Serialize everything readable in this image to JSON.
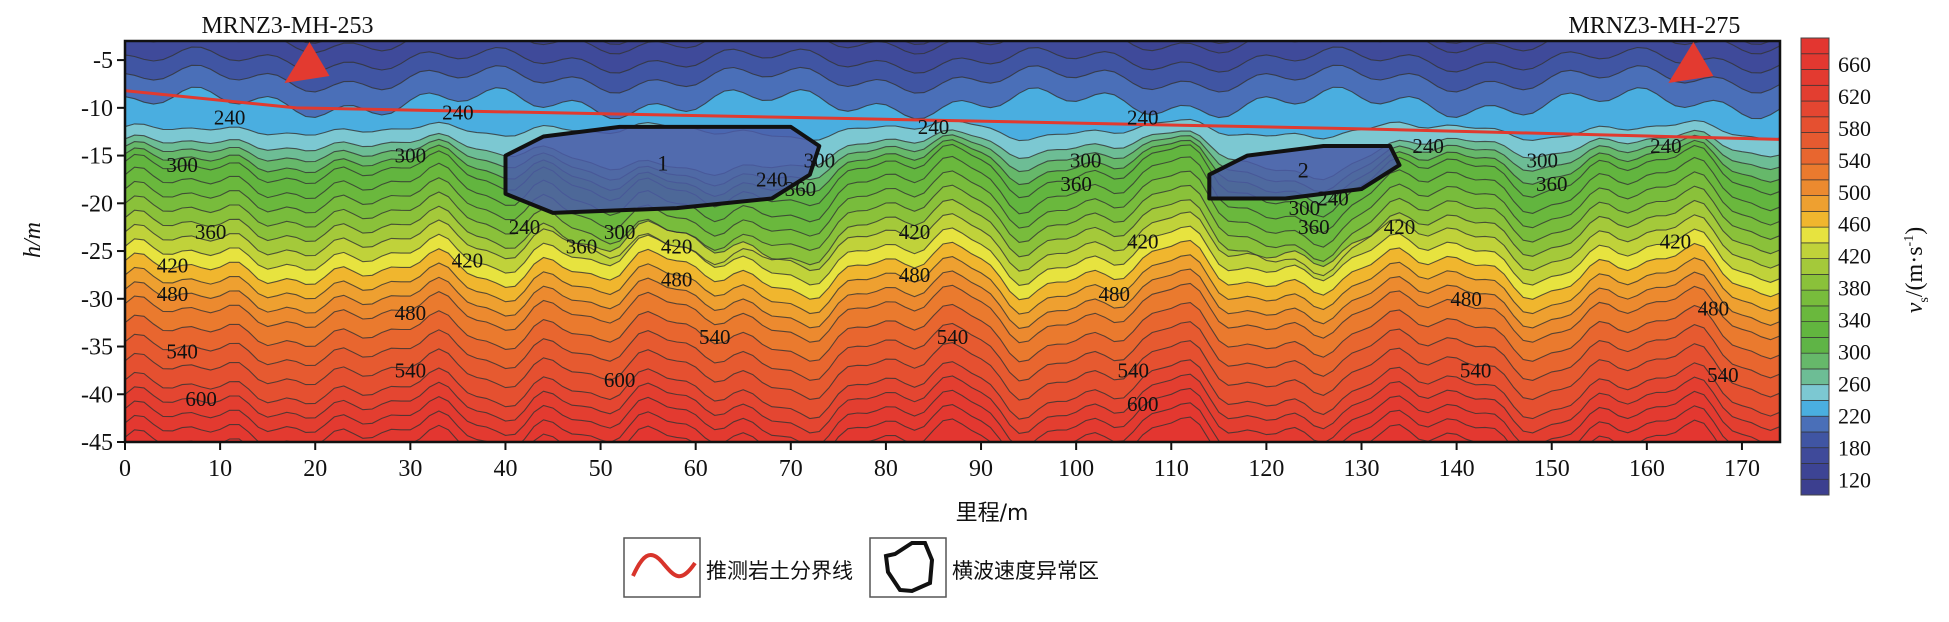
{
  "chart_data": {
    "type": "heatmap",
    "subtype": "filled-contour",
    "xlabel": "里程/m",
    "ylabel": "h/m",
    "xlim": [
      0,
      174
    ],
    "ylim": [
      -45,
      -3
    ],
    "xticks": [
      0,
      10,
      20,
      30,
      40,
      50,
      60,
      70,
      80,
      90,
      100,
      110,
      120,
      130,
      140,
      150,
      160,
      170
    ],
    "yticks": [
      -5,
      -10,
      -15,
      -20,
      -25,
      -30,
      -35,
      -40,
      -45
    ],
    "colorbar": {
      "label_main": "v",
      "label_sub": "s",
      "label_unit": "/(m·s",
      "label_exp": "-1",
      "label_close": ")",
      "tick_labels": [
        "660",
        "620",
        "580",
        "540",
        "500",
        "460",
        "420",
        "380",
        "340",
        "300",
        "260",
        "220",
        "180",
        "120"
      ],
      "levels": [
        120,
        140,
        160,
        180,
        200,
        220,
        240,
        260,
        280,
        300,
        320,
        340,
        360,
        380,
        400,
        420,
        440,
        460,
        480,
        500,
        520,
        540,
        560,
        580,
        600,
        620,
        640,
        660,
        680,
        700
      ],
      "colors": [
        "#3c3f8f",
        "#3d4494",
        "#3f4a9a",
        "#4055a3",
        "#4a6fb8",
        "#4aaee0",
        "#7cc8d2",
        "#6dbd95",
        "#66b86a",
        "#5fb446",
        "#62b53f",
        "#6ab83d",
        "#78bc3c",
        "#8ac13a",
        "#a4c93a",
        "#c0d23a",
        "#e7e33f",
        "#f0b62e",
        "#eea030",
        "#ec8a2f",
        "#ea7a2e",
        "#e8662f",
        "#e65a30",
        "#e55030",
        "#e44631",
        "#e33e30",
        "#e33a30",
        "#e33830",
        "#e33630"
      ]
    },
    "contour_labels": [
      {
        "text": "240",
        "x": 11,
        "y": -11
      },
      {
        "text": "240",
        "x": 35,
        "y": -10.5
      },
      {
        "text": "240",
        "x": 68,
        "y": -17.5
      },
      {
        "text": "240",
        "x": 85,
        "y": -12
      },
      {
        "text": "240",
        "x": 107,
        "y": -11
      },
      {
        "text": "240",
        "x": 127,
        "y": -19.5
      },
      {
        "text": "240",
        "x": 137,
        "y": -14
      },
      {
        "text": "240",
        "x": 162,
        "y": -14
      },
      {
        "text": "240",
        "x": 42,
        "y": -22.5
      },
      {
        "text": "300",
        "x": 6,
        "y": -16
      },
      {
        "text": "300",
        "x": 30,
        "y": -15
      },
      {
        "text": "300",
        "x": 73,
        "y": -15.5
      },
      {
        "text": "300",
        "x": 101,
        "y": -15.5
      },
      {
        "text": "300",
        "x": 149,
        "y": -15.5
      },
      {
        "text": "300",
        "x": 52,
        "y": -23
      },
      {
        "text": "300",
        "x": 124,
        "y": -20.5
      },
      {
        "text": "360",
        "x": 9,
        "y": -23
      },
      {
        "text": "360",
        "x": 71,
        "y": -18.5
      },
      {
        "text": "360",
        "x": 100,
        "y": -18
      },
      {
        "text": "360",
        "x": 150,
        "y": -18
      },
      {
        "text": "360",
        "x": 48,
        "y": -24.5
      },
      {
        "text": "360",
        "x": 125,
        "y": -22.5
      },
      {
        "text": "420",
        "x": 5,
        "y": -26.5
      },
      {
        "text": "420",
        "x": 36,
        "y": -26
      },
      {
        "text": "420",
        "x": 58,
        "y": -24.5
      },
      {
        "text": "420",
        "x": 83,
        "y": -23
      },
      {
        "text": "420",
        "x": 107,
        "y": -24
      },
      {
        "text": "420",
        "x": 134,
        "y": -22.5
      },
      {
        "text": "420",
        "x": 163,
        "y": -24
      },
      {
        "text": "480",
        "x": 5,
        "y": -29.5
      },
      {
        "text": "480",
        "x": 30,
        "y": -31.5
      },
      {
        "text": "480",
        "x": 58,
        "y": -28
      },
      {
        "text": "480",
        "x": 83,
        "y": -27.5
      },
      {
        "text": "480",
        "x": 104,
        "y": -29.5
      },
      {
        "text": "480",
        "x": 141,
        "y": -30
      },
      {
        "text": "480",
        "x": 167,
        "y": -31
      },
      {
        "text": "540",
        "x": 6,
        "y": -35.5
      },
      {
        "text": "540",
        "x": 30,
        "y": -37.5
      },
      {
        "text": "540",
        "x": 62,
        "y": -34
      },
      {
        "text": "540",
        "x": 87,
        "y": -34
      },
      {
        "text": "540",
        "x": 106,
        "y": -37.5
      },
      {
        "text": "540",
        "x": 142,
        "y": -37.5
      },
      {
        "text": "540",
        "x": 168,
        "y": -38
      },
      {
        "text": "600",
        "x": 8,
        "y": -40.5
      },
      {
        "text": "600",
        "x": 52,
        "y": -38.5
      },
      {
        "text": "600",
        "x": 107,
        "y": -41
      }
    ],
    "boundary_line": {
      "points": [
        [
          0,
          -8.2
        ],
        [
          18,
          -10
        ],
        [
          70,
          -11
        ],
        [
          130,
          -12.2
        ],
        [
          174,
          -13.3
        ]
      ],
      "color": "#e03a2f"
    },
    "anomalies": [
      {
        "label": "1",
        "points": [
          [
            40,
            -15
          ],
          [
            44,
            -13
          ],
          [
            52,
            -12
          ],
          [
            60,
            -12
          ],
          [
            70,
            -12
          ],
          [
            73,
            -14
          ],
          [
            72,
            -17
          ],
          [
            68,
            -19.5
          ],
          [
            58,
            -20.5
          ],
          [
            45,
            -21
          ],
          [
            40,
            -19
          ]
        ]
      },
      {
        "label": "2",
        "points": [
          [
            114,
            -17
          ],
          [
            118,
            -15
          ],
          [
            126,
            -14
          ],
          [
            133,
            -14
          ],
          [
            134,
            -16
          ],
          [
            130,
            -18.5
          ],
          [
            122,
            -19.5
          ],
          [
            114,
            -19.5
          ]
        ]
      }
    ],
    "stations": [
      {
        "name": "MRNZ3-MH-253",
        "x": 19.5
      },
      {
        "name": "MRNZ3-MH-275",
        "x": 165
      }
    ],
    "legend": [
      {
        "label": "推测岩土分界线",
        "type": "line"
      },
      {
        "label": "横波速度异常区",
        "type": "outline"
      }
    ]
  }
}
